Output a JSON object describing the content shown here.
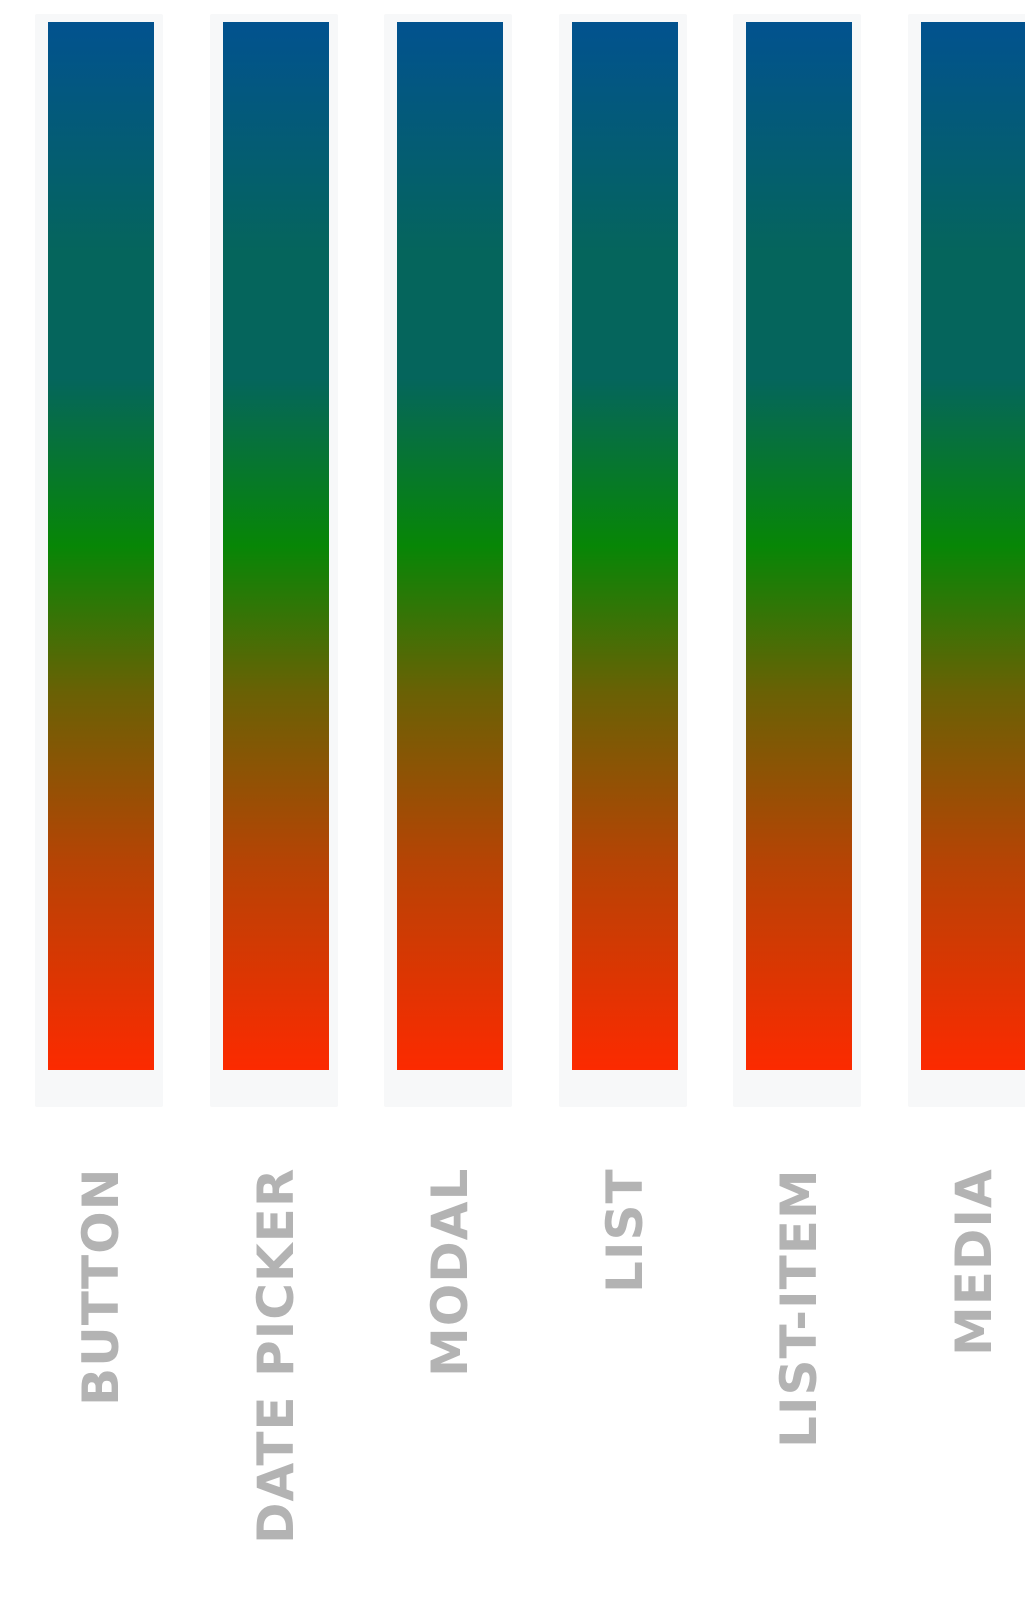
{
  "chart_data": {
    "type": "bar",
    "categories": [
      "BUTTON",
      "DATE PICKER",
      "MODAL",
      "LIST",
      "LIST-ITEM",
      "MEDIA"
    ],
    "values": [
      100,
      100,
      100,
      100,
      100,
      100
    ],
    "title": "",
    "xlabel": "",
    "ylabel": "",
    "ylim": [
      0,
      100
    ],
    "grid": false,
    "legend": "none",
    "tick_label_orientation": "vertical",
    "colors": {
      "gradient_top": "#02528f",
      "gradient_mid_1": "#05655c",
      "gradient_mid_2": "#078606",
      "gradient_mid_3": "#6a6105",
      "gradient_mid_4": "#b54405",
      "gradient_bottom": "#fc2a00",
      "label": "#b3b3b3",
      "bar_background": "#f7f8f9"
    }
  }
}
